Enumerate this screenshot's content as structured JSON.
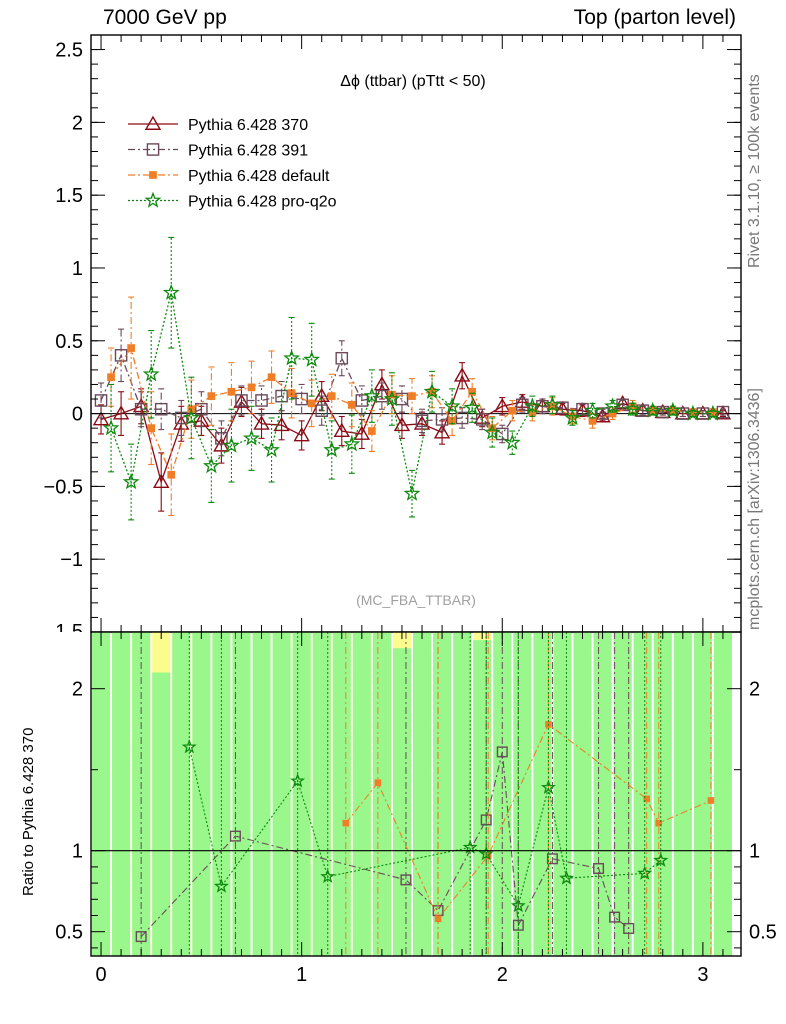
{
  "header": {
    "left": "7000 GeV pp",
    "right": "Top (parton level)",
    "side_top": "Rivet 3.1.10, ≥ 100k events",
    "side_bottom": "mcplots.cern.ch [arXiv:1306.3436]"
  },
  "chart_data": [
    {
      "type": "line",
      "title": "Δϕ (ttbar) (pTtt < 50)",
      "watermark": "(MC_FBA_TTBAR)",
      "xlabel": "",
      "ylabel": "",
      "xlim": [
        -0.05,
        3.19
      ],
      "ylim": [
        -1.5,
        2.6
      ],
      "xticks": [
        0,
        1,
        2,
        3
      ],
      "yticks": [
        -1,
        -0.5,
        0,
        0.5,
        1,
        1.5,
        2,
        2.5
      ],
      "ytick_labels": [
        "−1",
        "−0.5",
        "0",
        "0.5",
        "1",
        "1.5",
        "2",
        "2.5"
      ],
      "legend_position": "top-left",
      "series": [
        {
          "name": "Pythia 6.428 370",
          "color": "#8b0a14",
          "marker": "triangle-open",
          "dash": "",
          "x": [
            0.0,
            0.1,
            0.2,
            0.3,
            0.4,
            0.5,
            0.6,
            0.7,
            0.8,
            0.9,
            1.0,
            1.1,
            1.2,
            1.3,
            1.4,
            1.5,
            1.6,
            1.7,
            1.8,
            1.9,
            2.0,
            2.1,
            2.2,
            2.3,
            2.4,
            2.5,
            2.6,
            2.7,
            2.8,
            2.9,
            3.0,
            3.1
          ],
          "y": [
            -0.04,
            0.0,
            0.05,
            -0.47,
            -0.07,
            -0.05,
            -0.22,
            0.08,
            -0.07,
            -0.08,
            -0.15,
            0.12,
            -0.12,
            -0.14,
            0.2,
            -0.08,
            -0.07,
            -0.13,
            0.26,
            -0.03,
            0.05,
            0.08,
            0.05,
            0.03,
            0.02,
            -0.02,
            0.07,
            0.02,
            0.01,
            0.0,
            0.0,
            0.0
          ],
          "yerr": [
            0.1,
            0.15,
            0.12,
            0.2,
            0.12,
            0.1,
            0.12,
            0.1,
            0.1,
            0.1,
            0.1,
            0.1,
            0.1,
            0.1,
            0.1,
            0.09,
            0.08,
            0.08,
            0.09,
            0.06,
            0.06,
            0.05,
            0.05,
            0.04,
            0.04,
            0.03,
            0.03,
            0.03,
            0.02,
            0.02,
            0.02,
            0.02
          ]
        },
        {
          "name": "Pythia 6.428 391",
          "color": "#6a4a5a",
          "marker": "square-open",
          "dash": "7,3,2,3",
          "x": [
            0.0,
            0.1,
            0.2,
            0.3,
            0.4,
            0.5,
            0.6,
            0.7,
            0.8,
            0.9,
            1.0,
            1.1,
            1.2,
            1.3,
            1.4,
            1.5,
            1.6,
            1.7,
            1.8,
            1.9,
            2.0,
            2.1,
            2.2,
            2.3,
            2.4,
            2.5,
            2.6,
            2.7,
            2.8,
            2.9,
            3.0,
            3.1
          ],
          "y": [
            0.09,
            0.4,
            0.03,
            0.03,
            -0.03,
            0.03,
            -0.17,
            0.09,
            0.09,
            0.12,
            0.1,
            0.02,
            0.38,
            0.09,
            0.12,
            0.1,
            -0.05,
            -0.04,
            -0.03,
            -0.04,
            -0.14,
            0.06,
            0.05,
            0.04,
            0.03,
            0.0,
            0.06,
            0.02,
            0.01,
            0.0,
            0.0,
            0.01
          ],
          "yerr": [
            0.12,
            0.18,
            0.12,
            0.14,
            0.12,
            0.12,
            0.12,
            0.1,
            0.1,
            0.1,
            0.1,
            0.1,
            0.12,
            0.1,
            0.09,
            0.09,
            0.08,
            0.08,
            0.07,
            0.07,
            0.06,
            0.05,
            0.05,
            0.04,
            0.04,
            0.03,
            0.03,
            0.03,
            0.02,
            0.02,
            0.02,
            0.02
          ]
        },
        {
          "name": "Pythia 6.428 default",
          "color": "#f07e28",
          "marker": "square-filled",
          "dash": "7,3,2,3",
          "x": [
            0.05,
            0.15,
            0.25,
            0.35,
            0.45,
            0.55,
            0.65,
            0.75,
            0.85,
            0.95,
            1.05,
            1.15,
            1.25,
            1.35,
            1.45,
            1.55,
            1.65,
            1.75,
            1.85,
            1.95,
            2.05,
            2.15,
            2.25,
            2.35,
            2.45,
            2.55,
            2.65,
            2.75,
            2.85,
            2.95,
            3.05
          ],
          "y": [
            0.25,
            0.45,
            -0.1,
            -0.42,
            0.03,
            0.12,
            0.15,
            0.18,
            0.25,
            0.14,
            0.07,
            0.12,
            0.06,
            -0.12,
            0.13,
            0.12,
            0.15,
            -0.05,
            0.15,
            -0.1,
            0.02,
            0.01,
            0.05,
            -0.02,
            -0.05,
            0.0,
            0.05,
            0.02,
            0.02,
            0.01,
            0.01
          ],
          "yerr": [
            0.2,
            0.35,
            0.25,
            0.28,
            0.2,
            0.2,
            0.2,
            0.18,
            0.18,
            0.17,
            0.16,
            0.15,
            0.15,
            0.14,
            0.13,
            0.12,
            0.11,
            0.1,
            0.09,
            0.08,
            0.07,
            0.06,
            0.06,
            0.05,
            0.05,
            0.04,
            0.04,
            0.03,
            0.03,
            0.02,
            0.02
          ]
        },
        {
          "name": "Pythia 6.428 pro-q2o",
          "color": "#0d8a0d",
          "marker": "star",
          "dash": "2,2",
          "x": [
            0.05,
            0.15,
            0.25,
            0.35,
            0.45,
            0.55,
            0.65,
            0.75,
            0.85,
            0.95,
            1.05,
            1.15,
            1.25,
            1.35,
            1.45,
            1.55,
            1.65,
            1.75,
            1.85,
            1.95,
            2.05,
            2.15,
            2.25,
            2.35,
            2.45,
            2.55,
            2.65,
            2.75,
            2.85,
            2.95,
            3.05
          ],
          "y": [
            -0.1,
            -0.47,
            0.27,
            0.83,
            -0.03,
            -0.36,
            -0.22,
            -0.17,
            -0.25,
            0.38,
            0.37,
            -0.25,
            -0.21,
            0.12,
            0.1,
            -0.55,
            0.15,
            0.05,
            0.04,
            -0.13,
            -0.2,
            0.05,
            0.06,
            -0.03,
            0.02,
            0.05,
            0.03,
            0.02,
            0.02,
            0.0,
            0.0
          ],
          "yerr": [
            0.3,
            0.26,
            0.3,
            0.38,
            0.28,
            0.25,
            0.25,
            0.22,
            0.22,
            0.28,
            0.25,
            0.2,
            0.2,
            0.18,
            0.18,
            0.16,
            0.14,
            0.12,
            0.1,
            0.1,
            0.08,
            0.07,
            0.06,
            0.05,
            0.05,
            0.04,
            0.04,
            0.03,
            0.03,
            0.02,
            0.02
          ]
        }
      ]
    },
    {
      "type": "line",
      "title": "",
      "xlabel": "",
      "ylabel": "Ratio to Pythia 6.428 370",
      "xlim": [
        -0.05,
        3.19
      ],
      "ylim": [
        0.35,
        2.35
      ],
      "xticks": [
        0,
        1,
        2,
        3
      ],
      "yticks": [
        0.5,
        1,
        2
      ],
      "ytick_labels": [
        "0.5",
        "1",
        "2"
      ],
      "reference_line": 1,
      "bands": {
        "description": "reference uncertainty bands per bin",
        "green_fill": "#99f78b",
        "yellow_fill": "#fbfb8e",
        "x": [
          0.0,
          0.1,
          0.2,
          0.3,
          0.4,
          0.5,
          0.6,
          0.7,
          0.8,
          0.9,
          1.0,
          1.1,
          1.2,
          1.3,
          1.4,
          1.5,
          1.6,
          1.7,
          1.8,
          1.9,
          2.0,
          2.1,
          2.2,
          2.3,
          2.4,
          2.5,
          2.6,
          2.7,
          2.8,
          2.9,
          3.0,
          3.1
        ],
        "green_lo": [
          0.35,
          0.35,
          0.35,
          0.35,
          0.35,
          0.35,
          0.35,
          0.35,
          0.35,
          0.35,
          0.35,
          0.35,
          0.35,
          0.35,
          0.35,
          0.35,
          0.35,
          0.35,
          0.35,
          0.35,
          0.35,
          0.35,
          0.35,
          0.35,
          0.35,
          0.35,
          0.35,
          0.35,
          0.35,
          0.35,
          0.35,
          0.35
        ],
        "green_hi": [
          2.35,
          2.35,
          2.35,
          2.1,
          2.35,
          2.35,
          2.35,
          2.35,
          2.35,
          2.35,
          2.35,
          2.35,
          2.35,
          2.35,
          2.35,
          2.25,
          2.35,
          2.35,
          2.35,
          2.3,
          2.35,
          2.35,
          2.35,
          2.35,
          2.35,
          2.35,
          2.35,
          2.35,
          2.35,
          2.35,
          2.35,
          2.35
        ],
        "yellow_lo": [
          0.35,
          0.35,
          0.35,
          0.35,
          0.35,
          0.35,
          0.35,
          0.35,
          0.35,
          0.35,
          0.35,
          0.35,
          0.35,
          0.35,
          0.35,
          0.35,
          0.35,
          0.35,
          0.35,
          0.35,
          0.35,
          0.35,
          0.35,
          0.35,
          0.35,
          0.35,
          0.35,
          0.35,
          0.35,
          0.35,
          0.35,
          0.35
        ],
        "yellow_hi": [
          2.35,
          2.35,
          2.35,
          2.35,
          2.35,
          2.35,
          2.35,
          2.35,
          2.35,
          2.35,
          2.35,
          2.35,
          2.35,
          2.35,
          2.35,
          2.35,
          2.35,
          2.35,
          2.35,
          2.35,
          2.35,
          2.35,
          2.35,
          2.35,
          2.35,
          2.35,
          2.35,
          2.35,
          2.35,
          2.35,
          2.35,
          2.35
        ]
      },
      "series": [
        {
          "name": "Pythia 6.428 391",
          "color": "#6a4a5a",
          "marker": "square-open",
          "dash": "7,3,2,3",
          "x": [
            0.2,
            0.67,
            1.52,
            1.68,
            1.92,
            2.0,
            2.08,
            2.25,
            2.48,
            2.56,
            2.63
          ],
          "y": [
            0.47,
            1.09,
            0.82,
            0.63,
            1.19,
            1.61,
            0.54,
            0.95,
            0.89,
            0.59,
            0.52
          ]
        },
        {
          "name": "Pythia 6.428 default",
          "color": "#f07e28",
          "marker": "square-filled",
          "dash": "7,3,2,3",
          "x": [
            1.22,
            1.38,
            1.68,
            1.93,
            2.23,
            2.72,
            2.78,
            3.04
          ],
          "y": [
            1.17,
            1.42,
            0.58,
            0.97,
            1.78,
            1.32,
            1.17,
            1.31
          ]
        },
        {
          "name": "Pythia 6.428 pro-q2o",
          "color": "#0d8a0d",
          "marker": "star",
          "dash": "2,2",
          "x": [
            0.44,
            0.6,
            0.98,
            1.13,
            1.84,
            1.92,
            2.08,
            2.23,
            2.32,
            2.71,
            2.79
          ],
          "y": [
            1.64,
            0.78,
            1.43,
            0.84,
            1.02,
            0.98,
            0.66,
            1.39,
            0.83,
            0.86,
            0.94
          ]
        }
      ]
    }
  ]
}
